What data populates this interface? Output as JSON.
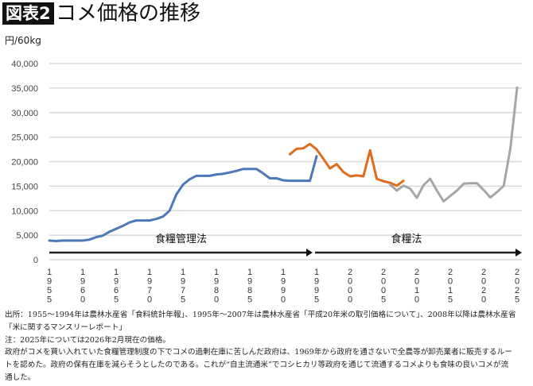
{
  "header": {
    "figure_label": "図表2",
    "title": "コメ価格の推移"
  },
  "chart_data": {
    "type": "line",
    "title": "コメ価格の推移",
    "ylabel": "円/60kg",
    "xlabel": "",
    "ylim": [
      0,
      40000
    ],
    "yticks": [
      0,
      5000,
      10000,
      15000,
      20000,
      25000,
      30000,
      35000,
      40000
    ],
    "ytick_labels": [
      "0",
      "5,000",
      "10,000",
      "15,000",
      "20,000",
      "25,000",
      "30,000",
      "35,000",
      "40,000"
    ],
    "xlim": [
      1955,
      2025
    ],
    "xticks": [
      "1955",
      "1960",
      "1965",
      "1970",
      "1975",
      "1980",
      "1985",
      "1990",
      "1995",
      "2000",
      "2005",
      "2010",
      "2015",
      "2020",
      "2025"
    ],
    "grid": true,
    "series": [
      {
        "color": "#4a78b8",
        "x": [
          1955,
          1956,
          1957,
          1958,
          1959,
          1960,
          1961,
          1962,
          1963,
          1964,
          1965,
          1966,
          1967,
          1968,
          1969,
          1970,
          1971,
          1972,
          1973,
          1974,
          1975,
          1976,
          1977,
          1978,
          1979,
          1980,
          1981,
          1982,
          1983,
          1984,
          1985,
          1986,
          1987,
          1988,
          1989,
          1990,
          1991,
          1992,
          1993,
          1994,
          1995
        ],
        "y": [
          3900,
          3800,
          3900,
          3900,
          3900,
          3900,
          4100,
          4600,
          4900,
          5700,
          6300,
          6900,
          7600,
          8000,
          8000,
          8000,
          8300,
          8800,
          10000,
          13300,
          15300,
          16400,
          17100,
          17100,
          17100,
          17400,
          17500,
          17800,
          18100,
          18500,
          18500,
          18500,
          17600,
          16600,
          16600,
          16200,
          16100,
          16100,
          16100,
          16100,
          21100
        ]
      },
      {
        "color": "#e06c1a",
        "x": [
          1991,
          1992,
          1993,
          1994,
          1995,
          1996,
          1997,
          1998,
          1999,
          2000,
          2001,
          2002,
          2003,
          2004,
          2005,
          2006,
          2007,
          2008
        ],
        "y": [
          21500,
          22600,
          22700,
          23600,
          22500,
          20600,
          18600,
          19500,
          17900,
          17000,
          17200,
          17000,
          22300,
          16500,
          16000,
          15700,
          15100,
          16100
        ]
      },
      {
        "color": "#a6a6a6",
        "x": [
          2006,
          2007,
          2008,
          2009,
          2010,
          2011,
          2012,
          2013,
          2014,
          2015,
          2016,
          2017,
          2018,
          2019,
          2020,
          2021,
          2022,
          2023,
          2024,
          2025
        ],
        "y": [
          15300,
          14100,
          15100,
          14500,
          12600,
          15200,
          16500,
          14100,
          11900,
          13000,
          14100,
          15500,
          15600,
          15600,
          14200,
          12700,
          13800,
          15100,
          22700,
          35100
        ]
      }
    ],
    "annotations": [
      {
        "text": "食糧管理法",
        "from": 1955,
        "to": 1994
      },
      {
        "text": "食糧法",
        "from": 1995,
        "to": 2025
      }
    ]
  },
  "notes": [
    "出所：1955～1994年は農林水産省「食料統計年報」、1995年～2007年は農林水産省「平成20年米の取引価格について」、2008年以降は農林水産省",
    "「米に関するマンスリーレポート」",
    "注：2025年については2026年2月現在の価格。",
    "政府がコメを買い入れていた食糧管理制度の下でコメの過剰在庫に苦しんだ政府は、1969年から政府を通さないで全農等が卸売業者に販売するルー",
    "トを認めた。政府の保有在庫を減らそうとしたのである。これが“自主流通米”でコシヒカリ等政府を通じて流通するコメよりも食味の良いコメが流",
    "通した。"
  ]
}
